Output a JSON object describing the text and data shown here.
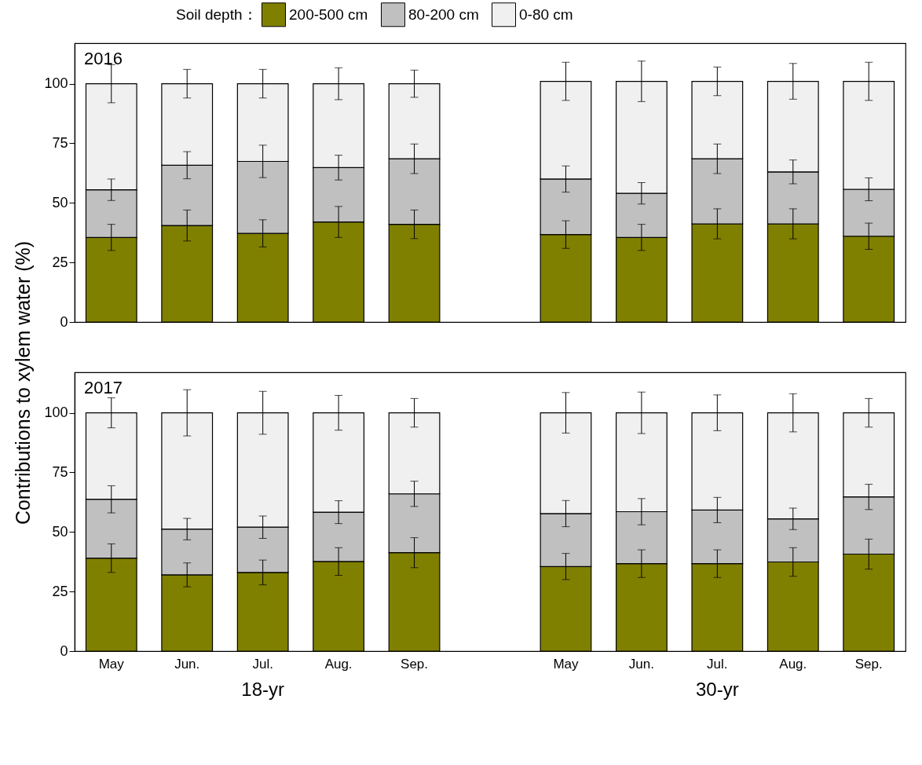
{
  "chart_data": [
    {
      "type": "bar",
      "title": "2016",
      "ylabel": "Contributions to xylem water (%)",
      "legend_title": "Soil depth：",
      "legend": "top",
      "stacked": true,
      "categories": [
        null,
        null,
        null,
        null,
        null,
        null,
        null,
        null,
        null,
        null,
        null
      ],
      "series": [
        {
          "name": "200-500 cm",
          "color": "#808000",
          "values": [
            35.5,
            40.5,
            37.2,
            42,
            41,
            null,
            36.7,
            35.5,
            41.2,
            41.2,
            36
          ],
          "errors": [
            5.5,
            6.5,
            5.7,
            6.5,
            6,
            null,
            5.8,
            5.5,
            6.3,
            6.3,
            5.5
          ]
        },
        {
          "name": "80-200 cm",
          "color": "#c0c0c0",
          "values": [
            20,
            25.3,
            30.2,
            22.8,
            27.5,
            null,
            23.3,
            18.5,
            27.3,
            21.8,
            19.7
          ],
          "errors": [
            4.5,
            5.7,
            6.8,
            5.2,
            6.2,
            null,
            5.5,
            4.5,
            6.2,
            5,
            4.8
          ]
        },
        {
          "name": "0-80 cm",
          "color": "#f0f0f0",
          "values": [
            44.5,
            34.2,
            32.6,
            35.2,
            31.5,
            null,
            41,
            47,
            32.5,
            38,
            45.3
          ],
          "errors": [
            8,
            6,
            6,
            6.7,
            5.7,
            null,
            8,
            8.5,
            6,
            7.5,
            8
          ]
        }
      ],
      "ylim": [
        0,
        117
      ],
      "yticks": [
        0,
        25,
        50,
        75,
        100
      ],
      "grid": false
    },
    {
      "type": "bar",
      "title": "2017",
      "legend": false,
      "stacked": true,
      "annotations": [
        "18-yr",
        "30-yr"
      ],
      "categories": [
        "May",
        "Jun.",
        "Jul.",
        "Aug.",
        "Sep.",
        null,
        "May",
        "Jun.",
        "Jul.",
        "Aug.",
        "Sep."
      ],
      "series": [
        {
          "color": "#808000",
          "values": [
            39,
            32,
            33,
            37.6,
            41.3,
            null,
            35.5,
            36.7,
            36.7,
            37.4,
            40.7
          ],
          "errors": [
            6,
            5,
            5.2,
            5.8,
            6.3,
            null,
            5.5,
            5.8,
            5.8,
            6,
            6.3
          ]
        },
        {
          "color": "#c0c0c0",
          "values": [
            24.7,
            19.2,
            19,
            20.7,
            24.7,
            null,
            22.2,
            21.8,
            22.5,
            18.1,
            24
          ],
          "errors": [
            5.7,
            4.5,
            4.7,
            4.8,
            5.3,
            null,
            5.5,
            5.5,
            5.3,
            4.5,
            5.3
          ]
        },
        {
          "color": "#f0f0f0",
          "values": [
            36.3,
            48.8,
            48,
            41.7,
            34,
            null,
            42.3,
            41.5,
            40.8,
            44.5,
            35.3
          ],
          "errors": [
            6.3,
            9.7,
            9,
            7.3,
            6,
            null,
            8.5,
            8.7,
            7.5,
            8,
            6
          ]
        }
      ],
      "ylim": [
        0,
        117
      ],
      "yticks": [
        0,
        25,
        50,
        75,
        100
      ],
      "grid": false
    }
  ]
}
